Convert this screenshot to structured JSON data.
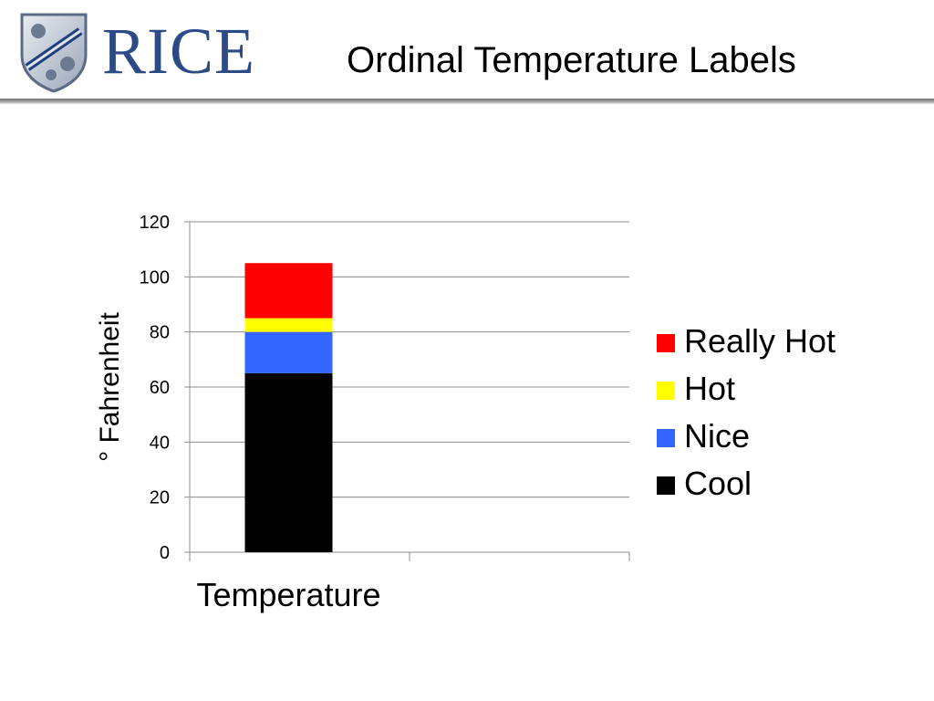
{
  "header": {
    "brand": "RICE",
    "title": "Ordinal Temperature Labels",
    "brand_color": "#2c4a86",
    "logo_icon": "rice-owl-shield-icon"
  },
  "chart_data": {
    "type": "bar",
    "stacked": true,
    "categories": [
      "Temperature"
    ],
    "series": [
      {
        "name": "Cool",
        "values": [
          65
        ],
        "color": "#000000"
      },
      {
        "name": "Nice",
        "values": [
          15
        ],
        "color": "#3366ff"
      },
      {
        "name": "Hot",
        "values": [
          5
        ],
        "color": "#ffff00"
      },
      {
        "name": "Really Hot",
        "values": [
          20
        ],
        "color": "#ff0000"
      }
    ],
    "ylabel": "° Fahrenheit",
    "xlabel": "",
    "ylim": [
      0,
      120
    ],
    "yticks": [
      0,
      20,
      40,
      60,
      80,
      100,
      120
    ],
    "grid": true,
    "legend_position": "right",
    "legend_order": [
      "Really Hot",
      "Hot",
      "Nice",
      "Cool"
    ]
  }
}
